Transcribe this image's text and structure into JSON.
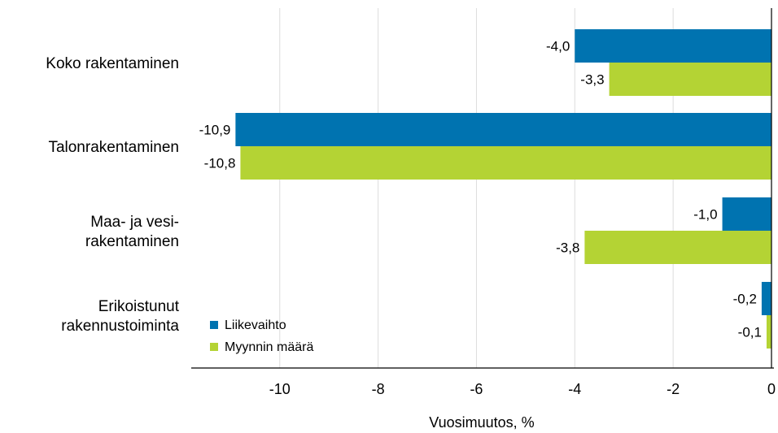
{
  "chart_data": {
    "type": "bar",
    "orientation": "horizontal",
    "categories": [
      [
        "Koko rakentaminen"
      ],
      [
        "Talonrakentaminen"
      ],
      [
        "Maa- ja vesi-",
        "rakentaminen"
      ],
      [
        "Erikoistunut",
        "rakennustoiminta"
      ]
    ],
    "series": [
      {
        "name": "Liikevaihto",
        "color": "#0073b0",
        "values": [
          -4.0,
          -10.9,
          -1.0,
          -0.2
        ],
        "labels": [
          "-4,0",
          "-10,9",
          "-1,0",
          "-0,2"
        ]
      },
      {
        "name": "Myynnin määrä",
        "color": "#b4d334",
        "values": [
          -3.3,
          -10.8,
          -3.8,
          -0.1
        ],
        "labels": [
          "-3,3",
          "-10,8",
          "-3,8",
          "-0,1"
        ]
      }
    ],
    "xlabel": "Vuosimuutos, %",
    "ylabel": "",
    "xlim": [
      -11.8,
      0
    ],
    "xticks": [
      -10,
      -8,
      -6,
      -4,
      -2,
      0
    ],
    "xtick_labels": [
      "-10",
      "-8",
      "-6",
      "-4",
      "-2",
      "0"
    ],
    "grid": "vertical",
    "legend_position": "bottom-left"
  }
}
